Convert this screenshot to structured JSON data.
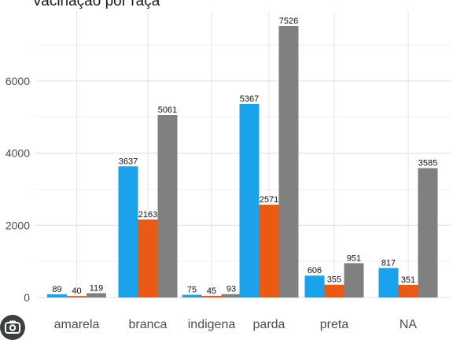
{
  "chart_data": {
    "type": "bar",
    "title": "Vacinação por raça",
    "xlabel": "",
    "ylabel": "",
    "categories": [
      "amarela",
      "branca",
      "indigena",
      "parda",
      "preta",
      "NA"
    ],
    "series": [
      {
        "values": [
          89,
          3637,
          75,
          5367,
          606,
          817
        ],
        "color": "#1aa3ec"
      },
      {
        "values": [
          40,
          2163,
          45,
          2571,
          355,
          351
        ],
        "color": "#eb5a13"
      },
      {
        "values": [
          119,
          5061,
          93,
          7526,
          951,
          3585
        ],
        "color": "#808080"
      }
    ],
    "y_ticks": [
      0,
      2000,
      4000,
      6000
    ],
    "ylim": [
      0,
      7700
    ],
    "grid": true,
    "legend": "none"
  },
  "icons": {
    "lens": "google-lens-icon"
  }
}
